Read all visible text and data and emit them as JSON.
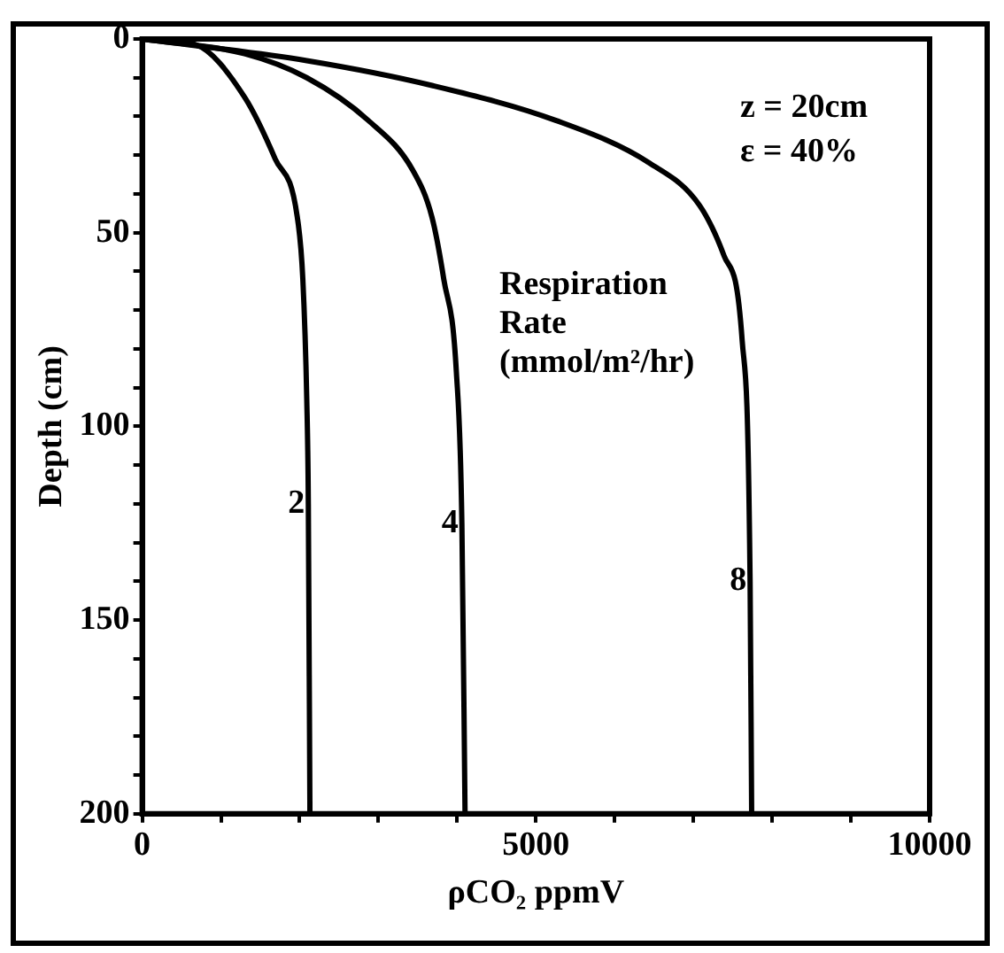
{
  "chart_data": {
    "type": "line",
    "xlabel": "ρCO₂ ppmV",
    "ylabel": "Depth (cm)",
    "xlim": [
      0,
      10000
    ],
    "ylim": [
      200,
      0
    ],
    "xticks": [
      0,
      {
        "value": 1000,
        "label": null
      },
      {
        "value": 2000,
        "label": null
      },
      {
        "value": 3000,
        "label": null
      },
      {
        "value": 4000,
        "label": null
      },
      5000,
      {
        "value": 6000,
        "label": null
      },
      {
        "value": 7000,
        "label": null
      },
      {
        "value": 8000,
        "label": null
      },
      {
        "value": 9000,
        "label": null
      },
      10000
    ],
    "yticks": [
      0,
      {
        "value": 10,
        "label": null
      },
      {
        "value": 20,
        "label": null
      },
      {
        "value": 30,
        "label": null
      },
      {
        "value": 40,
        "label": null
      },
      50,
      {
        "value": 60,
        "label": null
      },
      {
        "value": 70,
        "label": null
      },
      {
        "value": 80,
        "label": null
      },
      {
        "value": 90,
        "label": null
      },
      100,
      {
        "value": 110,
        "label": null
      },
      {
        "value": 120,
        "label": null
      },
      {
        "value": 130,
        "label": null
      },
      {
        "value": 140,
        "label": null
      },
      150,
      {
        "value": 160,
        "label": null
      },
      {
        "value": 170,
        "label": null
      },
      {
        "value": 180,
        "label": null
      },
      {
        "value": 190,
        "label": null
      },
      200
    ],
    "grid": false,
    "legend": false,
    "marker": "none",
    "line_style": "solid",
    "annotations": [
      "z = 20cm",
      "ε = 40%",
      "Respiration Rate (mmol/m²/hr)"
    ],
    "series": [
      {
        "name": "2",
        "color": "#000000",
        "x": [
          0,
          670,
          1300,
          1690,
          1970,
          2040,
          2090,
          2110,
          2130
        ],
        "values": [
          0,
          1.4,
          15,
          31,
          46,
          62,
          93,
          120,
          200
        ]
      },
      {
        "name": "4",
        "color": "#000000",
        "x": [
          0,
          1300,
          2090,
          2870,
          3440,
          3680,
          3830,
          3990,
          4060,
          4100
        ],
        "values": [
          0,
          3.8,
          10,
          21,
          34,
          46,
          62,
          86,
          125,
          200
        ]
      },
      {
        "name": "8",
        "color": "#000000",
        "x": [
          0,
          2090,
          3680,
          5250,
          6440,
          7080,
          7390,
          7620,
          7720,
          7740
        ],
        "values": [
          0,
          5.6,
          12,
          21,
          32,
          43,
          56,
          78,
          140,
          200
        ]
      }
    ]
  }
}
